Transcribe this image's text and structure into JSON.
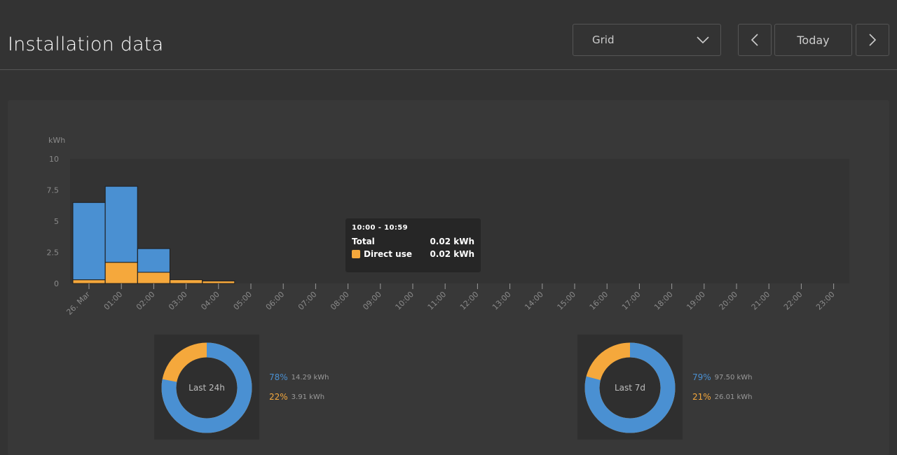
{
  "page": {
    "title": "Installation data"
  },
  "toolbar": {
    "select_value": "Grid",
    "today_label": "Today"
  },
  "icons": {
    "dropdown": "chevron-down-icon",
    "prev": "chevron-left-icon",
    "next": "chevron-right-icon"
  },
  "colors": {
    "blue": "#4a90d2",
    "orange": "#f5a83c",
    "background": "#333333",
    "panel": "#383838"
  },
  "chart_data": {
    "type": "bar",
    "stacked": true,
    "ylabel": "kWh",
    "ylim": [
      0,
      10
    ],
    "yticks": [
      "0",
      "2.5",
      "5",
      "7.5",
      "10"
    ],
    "yticks_values": [
      0,
      2.5,
      5,
      7.5,
      10
    ],
    "categories": [
      "26. Mar",
      "01:00",
      "02:00",
      "03:00",
      "04:00",
      "05:00",
      "06:00",
      "07:00",
      "08:00",
      "09:00",
      "10:00",
      "11:00",
      "12:00",
      "13:00",
      "14:00",
      "15:00",
      "16:00",
      "17:00",
      "18:00",
      "19:00",
      "20:00",
      "21:00",
      "22:00",
      "23:00"
    ],
    "series": [
      {
        "name": "Direct use",
        "color": "#f5a83c",
        "values": [
          0.3,
          1.7,
          0.9,
          0.3,
          0.2,
          0,
          0,
          0,
          0,
          0,
          0.02,
          0,
          0,
          0,
          0,
          0,
          0,
          0,
          0,
          0,
          0,
          0,
          0,
          0
        ]
      },
      {
        "color": "#4a90d2",
        "values": [
          6.2,
          6.1,
          1.9,
          0,
          0,
          0,
          0,
          0,
          0,
          0,
          0,
          0,
          0,
          0,
          0,
          0,
          0,
          0,
          0,
          0,
          0,
          0,
          0,
          0
        ]
      }
    ],
    "grid": false
  },
  "tooltip": {
    "range": "10:00 - 10:59",
    "total_label": "Total",
    "total_value": "0.02 kWh",
    "series_label": "Direct use",
    "series_value": "0.02 kWh"
  },
  "donuts": [
    {
      "label": "Last 24h",
      "blue_pct": 78,
      "blue_pct_text": "78%",
      "blue_kwh": "14.29 kWh",
      "orange_pct_text": "22%",
      "orange_kwh": "3.91 kWh"
    },
    {
      "label": "Last 7d",
      "blue_pct": 79,
      "blue_pct_text": "79%",
      "blue_kwh": "97.50 kWh",
      "orange_pct_text": "21%",
      "orange_kwh": "26.01 kWh"
    }
  ]
}
